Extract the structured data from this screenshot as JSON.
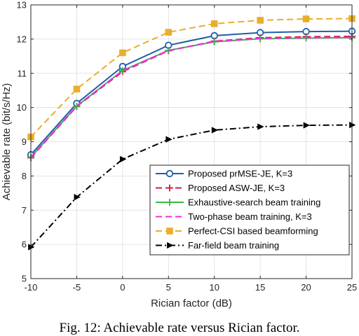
{
  "chart_data": {
    "type": "line",
    "xlabel": "Rician factor (dB)",
    "ylabel": "Achievable rate (bit/s/Hz)",
    "xlim": [
      -10,
      25
    ],
    "ylim": [
      5,
      13
    ],
    "xticks": [
      -10,
      -5,
      0,
      5,
      10,
      15,
      20,
      25
    ],
    "yticks": [
      5,
      6,
      7,
      8,
      9,
      10,
      11,
      12,
      13
    ],
    "grid": true,
    "legend_position": "lower-right",
    "x": [
      -10,
      -5,
      0,
      5,
      10,
      15,
      20,
      25
    ],
    "series": [
      {
        "name": "Proposed prMSE-JE, K=3",
        "color": "#1f5fa8",
        "style": "solid",
        "marker": "circle",
        "values": [
          8.62,
          10.12,
          11.2,
          11.82,
          12.1,
          12.19,
          12.22,
          12.23
        ]
      },
      {
        "name": "Proposed ASW-JE, K=3",
        "color": "#d6184c",
        "style": "dashed",
        "marker": "plus",
        "values": [
          8.53,
          10.03,
          11.05,
          11.66,
          11.94,
          12.04,
          12.07,
          12.08
        ]
      },
      {
        "name": "Exhaustive-search beam training",
        "color": "#3ab54a",
        "style": "solid",
        "marker": "plus",
        "values": [
          8.55,
          10.04,
          11.08,
          11.67,
          11.92,
          12.01,
          12.03,
          12.04
        ]
      },
      {
        "name": "Two-phase beam training, K=3",
        "color": "#ee2fe0",
        "style": "dashed",
        "marker": "none",
        "values": [
          8.55,
          10.05,
          11.08,
          11.67,
          11.93,
          12.02,
          12.04,
          12.05
        ]
      },
      {
        "name": "Perfect-CSI based beamforming",
        "color": "#e9ae2a",
        "style": "dashed",
        "marker": "square",
        "values": [
          9.14,
          10.54,
          11.6,
          12.2,
          12.45,
          12.55,
          12.59,
          12.6
        ]
      },
      {
        "name": "Far-field beam training",
        "color": "#000000",
        "style": "dashdot",
        "marker": "triangle-right",
        "values": [
          5.92,
          7.38,
          8.49,
          9.07,
          9.34,
          9.44,
          9.48,
          9.49
        ]
      }
    ]
  },
  "caption": "Fig. 12: Achievable rate versus Rician factor."
}
